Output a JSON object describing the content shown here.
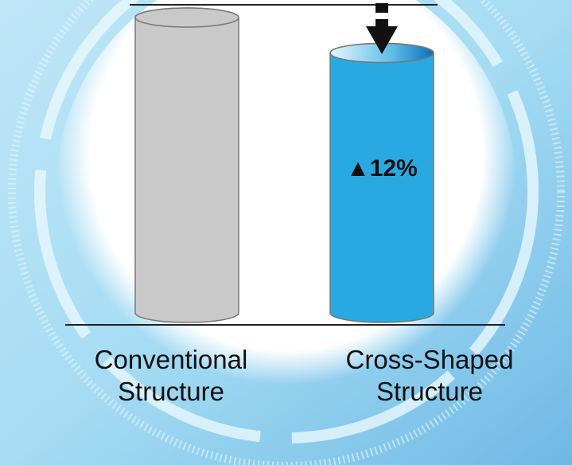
{
  "chart_data": {
    "type": "bar",
    "categories": [
      "Conventional Structure",
      "Cross-Shaped Structure"
    ],
    "values": [
      100,
      88
    ],
    "colors": [
      "#c9c9c9",
      "#29a9e1"
    ],
    "ylim": [
      0,
      100
    ],
    "annotation": "▲12%"
  }
}
